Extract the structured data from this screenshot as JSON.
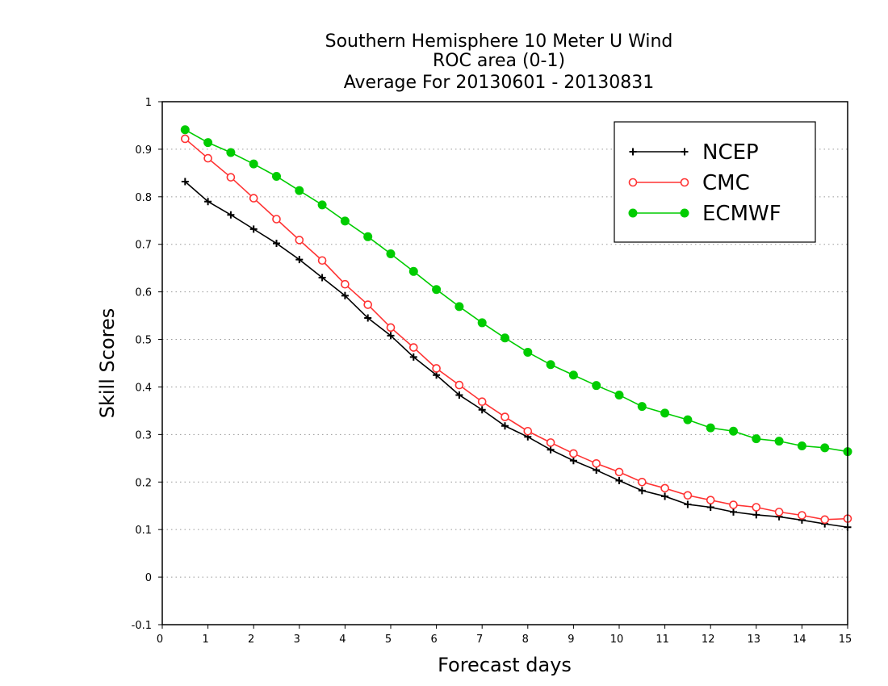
{
  "chart_data": {
    "type": "line",
    "title": [
      "Southern Hemisphere 10 Meter U Wind",
      "ROC area (0-1)",
      "Average For 20130601 - 20130831"
    ],
    "xlabel": "Forecast days",
    "ylabel": "Skill Scores",
    "xlim": [
      0,
      15
    ],
    "ylim": [
      -0.1,
      1
    ],
    "xticks": [
      0,
      1,
      2,
      3,
      4,
      5,
      6,
      7,
      8,
      9,
      10,
      11,
      12,
      13,
      14,
      15
    ],
    "yticks": [
      -0.1,
      0,
      0.1,
      0.2,
      0.3,
      0.4,
      0.5,
      0.6,
      0.7,
      0.8,
      0.9,
      1
    ],
    "ytick_labels": [
      "-0.1",
      "0",
      "0.1",
      "0.2",
      "0.3",
      "0.4",
      "0.5",
      "0.6",
      "0.7",
      "0.8",
      "0.9",
      "1"
    ],
    "grid": "horizontal dotted",
    "legend_position": "top-right",
    "x": [
      0.5,
      1,
      1.5,
      2,
      2.5,
      3,
      3.5,
      4,
      4.5,
      5,
      5.5,
      6,
      6.5,
      7,
      7.5,
      8,
      8.5,
      9,
      9.5,
      10,
      10.5,
      11,
      11.5,
      12,
      12.5,
      13,
      13.5,
      14,
      14.5,
      15
    ],
    "series": [
      {
        "name": "NCEP",
        "color": "#000000",
        "marker": "plus",
        "values": [
          0.832,
          0.79,
          0.762,
          0.732,
          0.702,
          0.668,
          0.63,
          0.592,
          0.545,
          0.508,
          0.463,
          0.425,
          0.383,
          0.352,
          0.318,
          0.295,
          0.268,
          0.245,
          0.225,
          0.203,
          0.182,
          0.17,
          0.153,
          0.147,
          0.137,
          0.131,
          0.127,
          0.12,
          0.112,
          0.105
        ]
      },
      {
        "name": "CMC",
        "color": "#ff3333",
        "marker": "open-circle",
        "values": [
          0.922,
          0.881,
          0.841,
          0.797,
          0.753,
          0.709,
          0.666,
          0.616,
          0.573,
          0.525,
          0.483,
          0.439,
          0.404,
          0.369,
          0.337,
          0.307,
          0.283,
          0.26,
          0.239,
          0.221,
          0.2,
          0.187,
          0.172,
          0.162,
          0.152,
          0.147,
          0.137,
          0.13,
          0.121,
          0.123
        ]
      },
      {
        "name": "ECMWF",
        "color": "#00cc00",
        "marker": "filled-circle",
        "values": [
          0.941,
          0.914,
          0.893,
          0.869,
          0.843,
          0.813,
          0.783,
          0.749,
          0.716,
          0.68,
          0.643,
          0.605,
          0.569,
          0.535,
          0.503,
          0.473,
          0.447,
          0.425,
          0.403,
          0.383,
          0.359,
          0.345,
          0.331,
          0.314,
          0.307,
          0.291,
          0.286,
          0.276,
          0.272,
          0.264
        ]
      }
    ]
  }
}
